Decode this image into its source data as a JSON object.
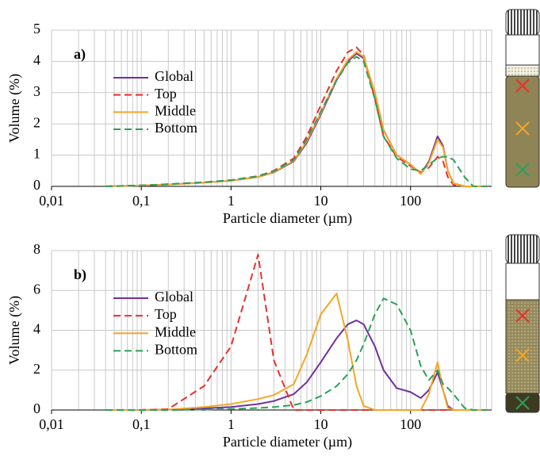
{
  "chart_data": [
    {
      "type": "line",
      "panel_label": "a)",
      "xlabel": "Particle diameter (µm)",
      "ylabel": "Volume (%)",
      "xscale": "log",
      "xlim": [
        0.01,
        800
      ],
      "ylim": [
        0,
        5
      ],
      "xticks": [
        {
          "value": 0.01,
          "label": "0,01"
        },
        {
          "value": 0.1,
          "label": "0,1"
        },
        1,
        10,
        100
      ],
      "yticks": [
        0,
        1,
        2,
        3,
        4,
        5
      ],
      "grid": true,
      "legend": "left",
      "x": [
        0.04,
        0.1,
        0.2,
        0.5,
        1,
        2,
        3,
        5,
        7,
        10,
        15,
        20,
        25,
        30,
        40,
        50,
        70,
        100,
        130,
        160,
        200,
        230,
        260,
        300,
        400,
        500,
        700
      ],
      "series": [
        {
          "name": "Global",
          "color": "#7030a0",
          "dash": false,
          "values": [
            0,
            0.03,
            0.06,
            0.12,
            0.18,
            0.3,
            0.45,
            0.8,
            1.4,
            2.3,
            3.4,
            4.0,
            4.25,
            4.1,
            3.0,
            1.8,
            1.0,
            0.7,
            0.4,
            0.8,
            1.6,
            1.3,
            0.5,
            0.1,
            0,
            0,
            0
          ]
        },
        {
          "name": "Top",
          "color": "#e8302a",
          "dash": true,
          "values": [
            0,
            0.03,
            0.07,
            0.13,
            0.2,
            0.33,
            0.5,
            0.9,
            1.6,
            2.6,
            3.7,
            4.3,
            4.45,
            4.2,
            2.8,
            1.6,
            0.95,
            0.65,
            0.45,
            0.6,
            0.95,
            0.8,
            0.3,
            0.05,
            0,
            0,
            0
          ]
        },
        {
          "name": "Middle",
          "color": "#f5a623",
          "dash": false,
          "values": [
            0,
            0.03,
            0.06,
            0.12,
            0.18,
            0.3,
            0.46,
            0.82,
            1.45,
            2.35,
            3.45,
            4.05,
            4.3,
            4.15,
            3.0,
            1.8,
            1.0,
            0.7,
            0.4,
            0.75,
            1.5,
            1.25,
            0.5,
            0.1,
            0,
            0,
            0
          ]
        },
        {
          "name": "Bottom",
          "color": "#2ca05a",
          "dash": true,
          "values": [
            0,
            0.03,
            0.07,
            0.13,
            0.2,
            0.32,
            0.48,
            0.85,
            1.5,
            2.4,
            3.4,
            3.95,
            4.15,
            4.0,
            2.8,
            1.6,
            0.9,
            0.55,
            0.5,
            0.7,
            0.9,
            0.95,
            0.95,
            0.85,
            0.3,
            0,
            0
          ]
        }
      ]
    },
    {
      "type": "line",
      "panel_label": "b)",
      "xlabel": "Particle diameter (µm)",
      "ylabel": "Volume (%)",
      "xscale": "log",
      "xlim": [
        0.01,
        800
      ],
      "ylim": [
        0,
        8
      ],
      "xticks": [
        {
          "value": 0.01,
          "label": "0,01"
        },
        {
          "value": 0.1,
          "label": "0,1"
        },
        1,
        10,
        100
      ],
      "yticks": [
        0,
        2,
        4,
        6,
        8
      ],
      "grid": true,
      "legend": "left",
      "x": [
        0.04,
        0.1,
        0.2,
        0.5,
        1,
        2,
        3,
        5,
        7,
        10,
        15,
        20,
        25,
        30,
        40,
        50,
        70,
        100,
        130,
        160,
        200,
        230,
        260,
        300,
        400,
        500,
        700
      ],
      "series": [
        {
          "name": "Global",
          "color": "#7030a0",
          "dash": false,
          "values": [
            0,
            0,
            0.02,
            0.08,
            0.15,
            0.3,
            0.45,
            0.8,
            1.4,
            2.4,
            3.6,
            4.3,
            4.5,
            4.3,
            3.2,
            2.0,
            1.1,
            0.9,
            0.6,
            1.0,
            1.9,
            1.0,
            0.2,
            0,
            0,
            0,
            0
          ]
        },
        {
          "name": "Top",
          "color": "#e8302a",
          "dash": true,
          "values": [
            0,
            0,
            0.05,
            1.2,
            3.2,
            7.8,
            2.5,
            0,
            0,
            0,
            0,
            0,
            0,
            0,
            0,
            0,
            0,
            0,
            0,
            0,
            0,
            0,
            0,
            0,
            0,
            0,
            0
          ]
        },
        {
          "name": "Middle",
          "color": "#f5a623",
          "dash": false,
          "values": [
            0,
            0,
            0.02,
            0.15,
            0.3,
            0.55,
            0.75,
            1.3,
            2.8,
            4.8,
            5.85,
            3.5,
            1.2,
            0.2,
            0,
            0,
            0,
            0,
            0,
            0.8,
            2.4,
            1.0,
            0.1,
            0,
            0,
            0,
            0
          ]
        },
        {
          "name": "Bottom",
          "color": "#2ca05a",
          "dash": true,
          "values": [
            0,
            0,
            0,
            0.02,
            0.05,
            0.1,
            0.15,
            0.25,
            0.4,
            0.7,
            1.2,
            1.8,
            2.5,
            3.3,
            4.8,
            5.6,
            5.3,
            4.0,
            2.2,
            1.5,
            2.0,
            1.3,
            1.1,
            0.8,
            0.1,
            0,
            0
          ]
        }
      ]
    }
  ]
}
